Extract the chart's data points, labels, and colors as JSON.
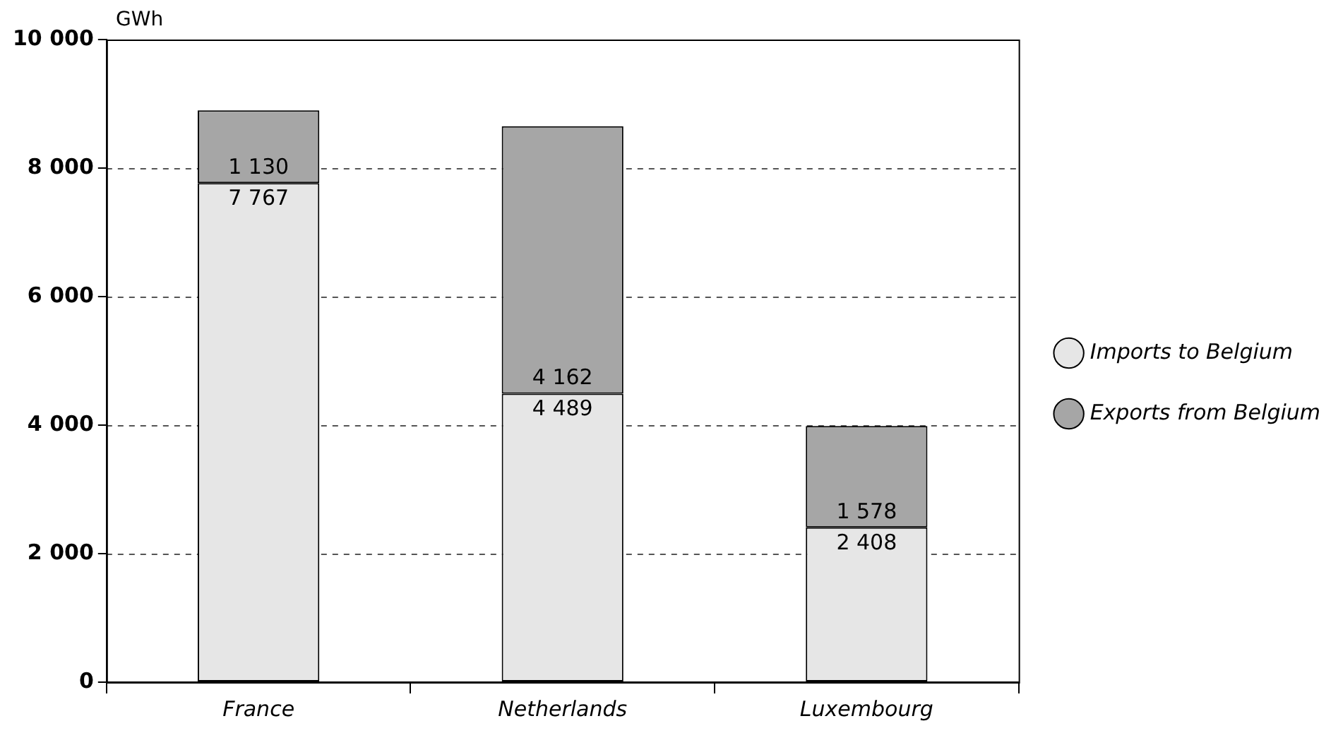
{
  "chart_data": {
    "type": "bar",
    "stacked": true,
    "ylabel": "GWh",
    "categories": [
      "France",
      "Netherlands",
      "Luxembourg"
    ],
    "series": [
      {
        "name": "Imports to Belgium",
        "color": "#e6e6e6",
        "values": [
          7767,
          4489,
          2408
        ],
        "value_labels": [
          "7 767",
          "4 489",
          "2 408"
        ]
      },
      {
        "name": "Exports from Belgium",
        "color": "#a6a6a6",
        "values": [
          1130,
          4162,
          1578
        ],
        "value_labels": [
          "1 130",
          "4 162",
          "1 578"
        ]
      }
    ],
    "ylim": [
      0,
      10000
    ],
    "yticks": [
      {
        "value": 0,
        "label": "0"
      },
      {
        "value": 2000,
        "label": "2 000"
      },
      {
        "value": 4000,
        "label": "4 000"
      },
      {
        "value": 6000,
        "label": "6 000"
      },
      {
        "value": 8000,
        "label": "8 000"
      },
      {
        "value": 10000,
        "label": "10 000"
      }
    ],
    "grid": "y",
    "legend": "right"
  }
}
